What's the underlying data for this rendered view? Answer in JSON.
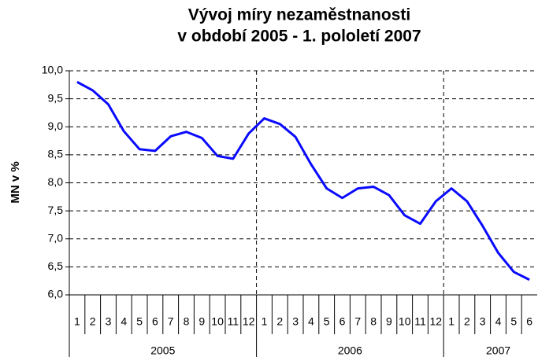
{
  "chart_data": {
    "type": "line",
    "title": [
      "Vývoj míry nezaměstnanosti",
      "v období 2005 - 1. pololetí 2007"
    ],
    "y_label": "MN v %",
    "categories": [
      "1",
      "2",
      "3",
      "4",
      "5",
      "6",
      "7",
      "8",
      "9",
      "10",
      "11",
      "12",
      "1",
      "2",
      "3",
      "4",
      "5",
      "6",
      "7",
      "8",
      "9",
      "10",
      "11",
      "12",
      "1",
      "2",
      "3",
      "4",
      "5",
      "6"
    ],
    "years": [
      "2005",
      "2006",
      "2007"
    ],
    "series": [
      {
        "name": "MN v %",
        "color": "#0a0aff",
        "values": [
          9.8,
          9.65,
          9.4,
          8.92,
          8.6,
          8.57,
          8.83,
          8.91,
          8.8,
          8.48,
          8.43,
          8.88,
          9.15,
          9.05,
          8.82,
          8.33,
          7.9,
          7.73,
          7.9,
          7.93,
          7.78,
          7.42,
          7.27,
          7.67,
          7.9,
          7.67,
          7.23,
          6.75,
          6.41,
          6.27
        ]
      }
    ],
    "ylim": [
      6.0,
      10.0
    ],
    "yticks": [
      {
        "value": 6.0,
        "label": "6,0"
      },
      {
        "value": 6.5,
        "label": "6,5"
      },
      {
        "value": 7.0,
        "label": "7,0"
      },
      {
        "value": 7.5,
        "label": "7,5"
      },
      {
        "value": 8.0,
        "label": "8,0"
      },
      {
        "value": 8.5,
        "label": "8,5"
      },
      {
        "value": 9.0,
        "label": "9,0"
      },
      {
        "value": 9.5,
        "label": "9,5"
      },
      {
        "value": 10.0,
        "label": "10,0"
      }
    ],
    "grid": true
  }
}
